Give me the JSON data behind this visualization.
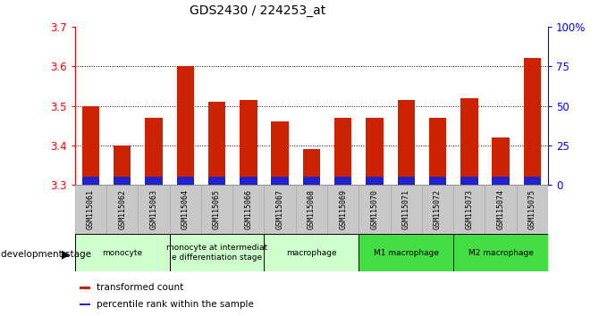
{
  "title": "GDS2430 / 224253_at",
  "samples": [
    "GSM115061",
    "GSM115062",
    "GSM115063",
    "GSM115064",
    "GSM115065",
    "GSM115066",
    "GSM115067",
    "GSM115068",
    "GSM115069",
    "GSM115070",
    "GSM115071",
    "GSM115072",
    "GSM115073",
    "GSM115074",
    "GSM115075"
  ],
  "transformed_count": [
    3.5,
    3.4,
    3.47,
    3.6,
    3.51,
    3.515,
    3.46,
    3.39,
    3.47,
    3.47,
    3.515,
    3.47,
    3.52,
    3.42,
    3.62
  ],
  "percentile_rank": [
    5,
    5,
    5,
    5,
    5,
    5,
    5,
    5,
    5,
    5,
    5,
    5,
    5,
    5,
    5
  ],
  "ylim_left": [
    3.3,
    3.7
  ],
  "ylim_right": [
    0,
    100
  ],
  "bar_bottom": 3.3,
  "red_color": "#cc2200",
  "blue_color": "#2222cc",
  "tick_values_left": [
    3.3,
    3.4,
    3.5,
    3.6,
    3.7
  ],
  "tick_values_right": [
    0,
    25,
    50,
    75,
    100
  ],
  "tick_labels_right": [
    "0",
    "25",
    "50",
    "75",
    "100%"
  ],
  "bar_width": 0.55,
  "stage_groups": [
    {
      "label": "monocyte",
      "start": 0,
      "end": 3,
      "color": "#ccffcc"
    },
    {
      "label": "monocyte at intermediat\ne differentiation stage",
      "start": 3,
      "end": 6,
      "color": "#ccffcc"
    },
    {
      "label": "macrophage",
      "start": 6,
      "end": 9,
      "color": "#ccffcc"
    },
    {
      "label": "M1 macrophage",
      "start": 9,
      "end": 12,
      "color": "#44dd44"
    },
    {
      "label": "M2 macrophage",
      "start": 12,
      "end": 15,
      "color": "#44dd44"
    }
  ],
  "legend_items": [
    {
      "label": "transformed count",
      "color": "#cc2200"
    },
    {
      "label": "percentile rank within the sample",
      "color": "#2222cc"
    }
  ]
}
